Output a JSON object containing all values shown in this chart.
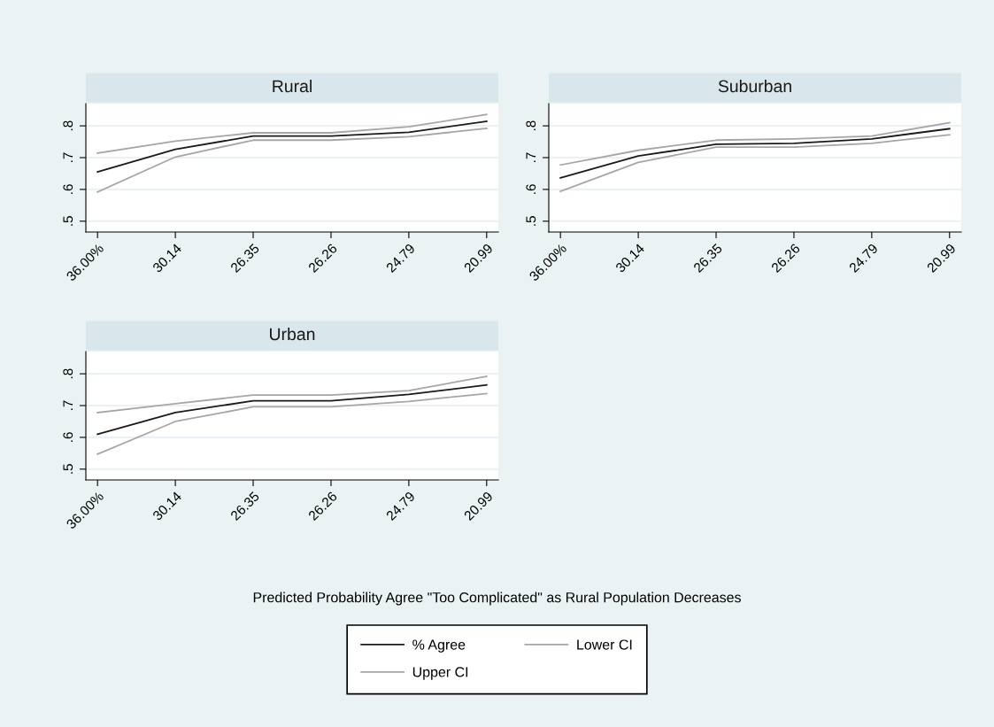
{
  "chart_data": [
    {
      "type": "line",
      "title": "Rural",
      "categories": [
        "36.00%",
        "30.14",
        "26.35",
        "26.26",
        "24.79",
        "20.99"
      ],
      "series": [
        {
          "color": "#1a1a1a",
          "values": [
            0.655,
            0.726,
            0.768,
            0.768,
            0.78,
            0.814
          ]
        },
        {
          "color": "#a6a6a6",
          "values": [
            0.592,
            0.702,
            0.755,
            0.755,
            0.766,
            0.792
          ]
        },
        {
          "color": "#a6a6a6",
          "values": [
            0.714,
            0.752,
            0.778,
            0.778,
            0.797,
            0.836
          ]
        }
      ],
      "ylim": [
        0.466,
        0.87
      ],
      "yticks": [
        {
          "value": 0.5,
          "label": ".5"
        },
        {
          "value": 0.6,
          "label": ".6"
        },
        {
          "value": 0.7,
          "label": ".7"
        },
        {
          "value": 0.8,
          "label": ".8"
        }
      ],
      "grid": "y"
    },
    {
      "type": "line",
      "title": "Suburban",
      "categories": [
        "36.00%",
        "30.14",
        "26.35",
        "26.26",
        "24.79",
        "20.99"
      ],
      "series": [
        {
          "color": "#1a1a1a",
          "values": [
            0.636,
            0.705,
            0.742,
            0.745,
            0.759,
            0.791
          ]
        },
        {
          "color": "#a6a6a6",
          "values": [
            0.594,
            0.685,
            0.733,
            0.733,
            0.745,
            0.772
          ]
        },
        {
          "color": "#a6a6a6",
          "values": [
            0.677,
            0.723,
            0.755,
            0.759,
            0.768,
            0.81
          ]
        }
      ],
      "ylim": [
        0.466,
        0.87
      ],
      "yticks": [
        {
          "value": 0.5,
          "label": ".5"
        },
        {
          "value": 0.6,
          "label": ".6"
        },
        {
          "value": 0.7,
          "label": ".7"
        },
        {
          "value": 0.8,
          "label": ".8"
        }
      ],
      "grid": "y"
    },
    {
      "type": "line",
      "title": "Urban",
      "categories": [
        "36.00%",
        "30.14",
        "26.35",
        "26.26",
        "24.79",
        "20.99"
      ],
      "series": [
        {
          "name": "% Agree",
          "color": "#1a1a1a",
          "values": [
            0.61,
            0.678,
            0.715,
            0.715,
            0.735,
            0.765
          ]
        },
        {
          "name": "Lower CI",
          "color": "#a6a6a6",
          "values": [
            0.547,
            0.65,
            0.696,
            0.696,
            0.713,
            0.738
          ]
        },
        {
          "name": "Upper CI",
          "color": "#a6a6a6",
          "values": [
            0.678,
            0.706,
            0.733,
            0.733,
            0.747,
            0.792
          ]
        }
      ],
      "ylim": [
        0.466,
        0.87
      ],
      "yticks": [
        {
          "value": 0.5,
          "label": ".5"
        },
        {
          "value": 0.6,
          "label": ".6"
        },
        {
          "value": 0.7,
          "label": ".7"
        },
        {
          "value": 0.8,
          "label": ".8"
        }
      ],
      "grid": "y",
      "legend": "bottom",
      "annotations": [
        "Predicted Probability Agree \"Too Complicated\" as Rural Population Decreases"
      ]
    }
  ]
}
